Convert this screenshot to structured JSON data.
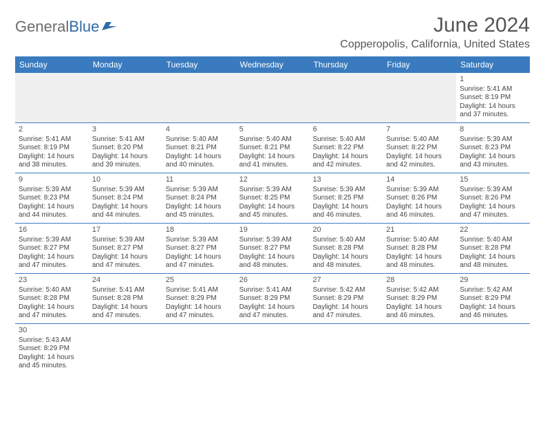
{
  "logo": {
    "part1": "General",
    "part2": "Blue"
  },
  "title": "June 2024",
  "location": "Copperopolis, California, United States",
  "dayNames": [
    "Sunday",
    "Monday",
    "Tuesday",
    "Wednesday",
    "Thursday",
    "Friday",
    "Saturday"
  ],
  "weeks": [
    [
      null,
      null,
      null,
      null,
      null,
      null,
      {
        "n": "1",
        "sr": "5:41 AM",
        "ss": "8:19 PM",
        "dl": "14 hours and 37 minutes."
      }
    ],
    [
      {
        "n": "2",
        "sr": "5:41 AM",
        "ss": "8:19 PM",
        "dl": "14 hours and 38 minutes."
      },
      {
        "n": "3",
        "sr": "5:41 AM",
        "ss": "8:20 PM",
        "dl": "14 hours and 39 minutes."
      },
      {
        "n": "4",
        "sr": "5:40 AM",
        "ss": "8:21 PM",
        "dl": "14 hours and 40 minutes."
      },
      {
        "n": "5",
        "sr": "5:40 AM",
        "ss": "8:21 PM",
        "dl": "14 hours and 41 minutes."
      },
      {
        "n": "6",
        "sr": "5:40 AM",
        "ss": "8:22 PM",
        "dl": "14 hours and 42 minutes."
      },
      {
        "n": "7",
        "sr": "5:40 AM",
        "ss": "8:22 PM",
        "dl": "14 hours and 42 minutes."
      },
      {
        "n": "8",
        "sr": "5:39 AM",
        "ss": "8:23 PM",
        "dl": "14 hours and 43 minutes."
      }
    ],
    [
      {
        "n": "9",
        "sr": "5:39 AM",
        "ss": "8:23 PM",
        "dl": "14 hours and 44 minutes."
      },
      {
        "n": "10",
        "sr": "5:39 AM",
        "ss": "8:24 PM",
        "dl": "14 hours and 44 minutes."
      },
      {
        "n": "11",
        "sr": "5:39 AM",
        "ss": "8:24 PM",
        "dl": "14 hours and 45 minutes."
      },
      {
        "n": "12",
        "sr": "5:39 AM",
        "ss": "8:25 PM",
        "dl": "14 hours and 45 minutes."
      },
      {
        "n": "13",
        "sr": "5:39 AM",
        "ss": "8:25 PM",
        "dl": "14 hours and 46 minutes."
      },
      {
        "n": "14",
        "sr": "5:39 AM",
        "ss": "8:26 PM",
        "dl": "14 hours and 46 minutes."
      },
      {
        "n": "15",
        "sr": "5:39 AM",
        "ss": "8:26 PM",
        "dl": "14 hours and 47 minutes."
      }
    ],
    [
      {
        "n": "16",
        "sr": "5:39 AM",
        "ss": "8:27 PM",
        "dl": "14 hours and 47 minutes."
      },
      {
        "n": "17",
        "sr": "5:39 AM",
        "ss": "8:27 PM",
        "dl": "14 hours and 47 minutes."
      },
      {
        "n": "18",
        "sr": "5:39 AM",
        "ss": "8:27 PM",
        "dl": "14 hours and 47 minutes."
      },
      {
        "n": "19",
        "sr": "5:39 AM",
        "ss": "8:27 PM",
        "dl": "14 hours and 48 minutes."
      },
      {
        "n": "20",
        "sr": "5:40 AM",
        "ss": "8:28 PM",
        "dl": "14 hours and 48 minutes."
      },
      {
        "n": "21",
        "sr": "5:40 AM",
        "ss": "8:28 PM",
        "dl": "14 hours and 48 minutes."
      },
      {
        "n": "22",
        "sr": "5:40 AM",
        "ss": "8:28 PM",
        "dl": "14 hours and 48 minutes."
      }
    ],
    [
      {
        "n": "23",
        "sr": "5:40 AM",
        "ss": "8:28 PM",
        "dl": "14 hours and 47 minutes."
      },
      {
        "n": "24",
        "sr": "5:41 AM",
        "ss": "8:28 PM",
        "dl": "14 hours and 47 minutes."
      },
      {
        "n": "25",
        "sr": "5:41 AM",
        "ss": "8:29 PM",
        "dl": "14 hours and 47 minutes."
      },
      {
        "n": "26",
        "sr": "5:41 AM",
        "ss": "8:29 PM",
        "dl": "14 hours and 47 minutes."
      },
      {
        "n": "27",
        "sr": "5:42 AM",
        "ss": "8:29 PM",
        "dl": "14 hours and 47 minutes."
      },
      {
        "n": "28",
        "sr": "5:42 AM",
        "ss": "8:29 PM",
        "dl": "14 hours and 46 minutes."
      },
      {
        "n": "29",
        "sr": "5:42 AM",
        "ss": "8:29 PM",
        "dl": "14 hours and 46 minutes."
      }
    ],
    [
      {
        "n": "30",
        "sr": "5:43 AM",
        "ss": "8:29 PM",
        "dl": "14 hours and 45 minutes."
      },
      null,
      null,
      null,
      null,
      null,
      null
    ]
  ],
  "labels": {
    "sunrise": "Sunrise: ",
    "sunset": "Sunset: ",
    "daylight": "Daylight: "
  },
  "colors": {
    "header_bg": "#3a7bbf",
    "header_text": "#ffffff",
    "empty_bg": "#f0f0f0",
    "border": "#3a7bbf",
    "text": "#444444"
  }
}
